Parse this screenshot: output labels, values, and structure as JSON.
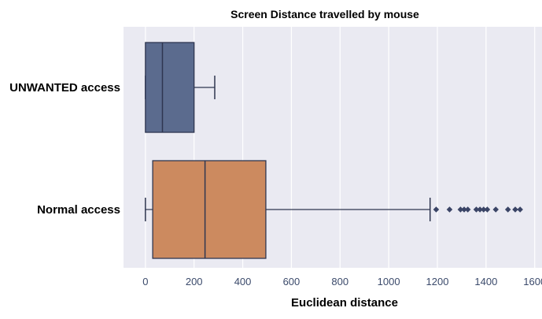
{
  "chart_data": {
    "type": "box",
    "title": "Screen Distance travelled by mouse",
    "xlabel": "Euclidean distance",
    "ylabel": "",
    "xlim": [
      -90,
      1630
    ],
    "xticks": [
      0,
      200,
      400,
      600,
      800,
      1000,
      1200,
      1400,
      1600
    ],
    "grid": true,
    "orientation": "horizontal",
    "categories": [
      "UNWANTED access",
      "Normal access"
    ],
    "series": [
      {
        "category": "UNWANTED access",
        "color": "#5b6b8e",
        "whisker_low": 0,
        "q1": 0,
        "median": 70,
        "q3": 200,
        "whisker_high": 285,
        "outliers": []
      },
      {
        "category": "Normal access",
        "color": "#cc8a5f",
        "whisker_low": 0,
        "q1": 30,
        "median": 245,
        "q3": 495,
        "whisker_high": 1170,
        "outliers": [
          1195,
          1250,
          1295,
          1310,
          1325,
          1360,
          1375,
          1390,
          1405,
          1440,
          1490,
          1520,
          1540
        ]
      }
    ]
  }
}
